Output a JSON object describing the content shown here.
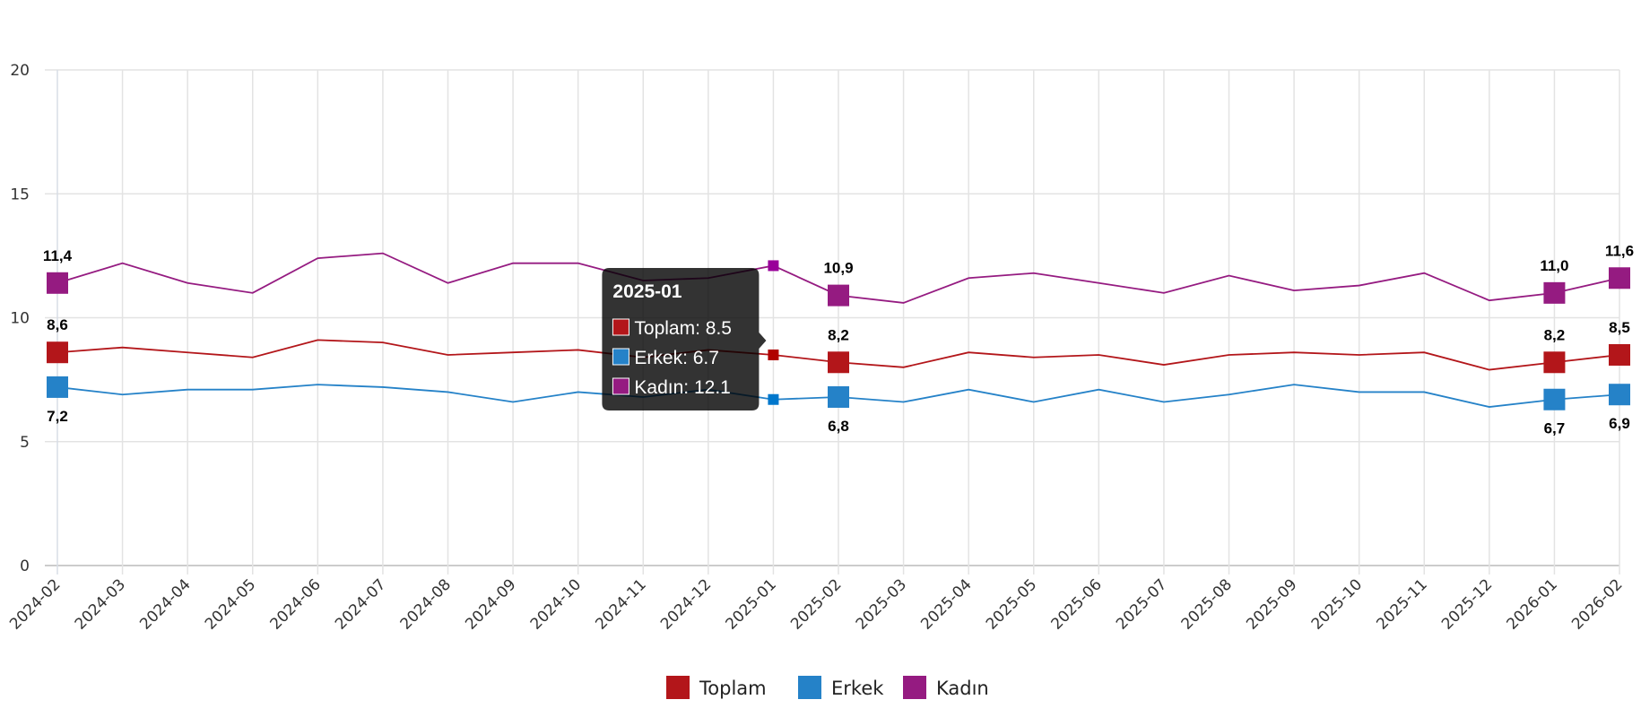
{
  "chart_data": {
    "type": "line",
    "title": "",
    "xlabel": "",
    "ylabel": "",
    "ylim": [
      0,
      20
    ],
    "yticks": [
      "0",
      "5",
      "10",
      "15",
      "20"
    ],
    "grid": true,
    "legend_position": "bottom-center",
    "categories": [
      "2024-02",
      "2024-03",
      "2024-04",
      "2024-05",
      "2024-06",
      "2024-07",
      "2024-08",
      "2024-09",
      "2024-10",
      "2024-11",
      "2024-12",
      "2025-01",
      "2025-02",
      "2025-03",
      "2025-04",
      "2025-05",
      "2025-06",
      "2025-07",
      "2025-08",
      "2025-09",
      "2025-10",
      "2025-11",
      "2025-12",
      "2026-01",
      "2026-02"
    ],
    "series": [
      {
        "name": "Toplam",
        "color": "#b3161a",
        "hover_color": "#b00000",
        "values": [
          8.6,
          8.8,
          8.6,
          8.4,
          9.1,
          9.0,
          8.5,
          8.6,
          8.7,
          8.4,
          8.7,
          8.5,
          8.2,
          8.0,
          8.6,
          8.4,
          8.5,
          8.1,
          8.5,
          8.6,
          8.5,
          8.6,
          7.9,
          8.2,
          8.5
        ],
        "label_position": "above"
      },
      {
        "name": "Erkek",
        "color": "#2582c8",
        "hover_color": "#0077cc",
        "values": [
          7.2,
          6.9,
          7.1,
          7.1,
          7.3,
          7.2,
          7.0,
          6.6,
          7.0,
          6.8,
          7.1,
          6.7,
          6.8,
          6.6,
          7.1,
          6.6,
          7.1,
          6.6,
          6.9,
          7.3,
          7.0,
          7.0,
          6.4,
          6.7,
          6.9
        ],
        "label_position": "below"
      },
      {
        "name": "Kadın",
        "color": "#951b81",
        "hover_color": "#990099",
        "values": [
          11.4,
          12.2,
          11.4,
          11.0,
          12.4,
          12.6,
          11.4,
          12.2,
          12.2,
          11.5,
          11.6,
          12.1,
          10.9,
          10.6,
          11.6,
          11.8,
          11.4,
          11.0,
          11.7,
          11.1,
          11.3,
          11.8,
          10.7,
          11.0,
          11.6
        ],
        "label_position": "above"
      }
    ],
    "data_labels": {
      "indices": [
        0,
        12,
        23,
        24
      ],
      "Toplam": [
        "8,6",
        "8,2",
        "8,2",
        "8,5"
      ],
      "Erkek": [
        "7,2",
        "6,8",
        "6,7",
        "6,9"
      ],
      "Kadın": [
        "11,4",
        "10,9",
        "11,0",
        "11,6"
      ]
    },
    "tooltip": {
      "category_index": 11,
      "title": "2025-01",
      "rows": [
        "Toplam: 8.5",
        "Erkek: 6.7",
        "Kadın: 12.1"
      ]
    }
  }
}
